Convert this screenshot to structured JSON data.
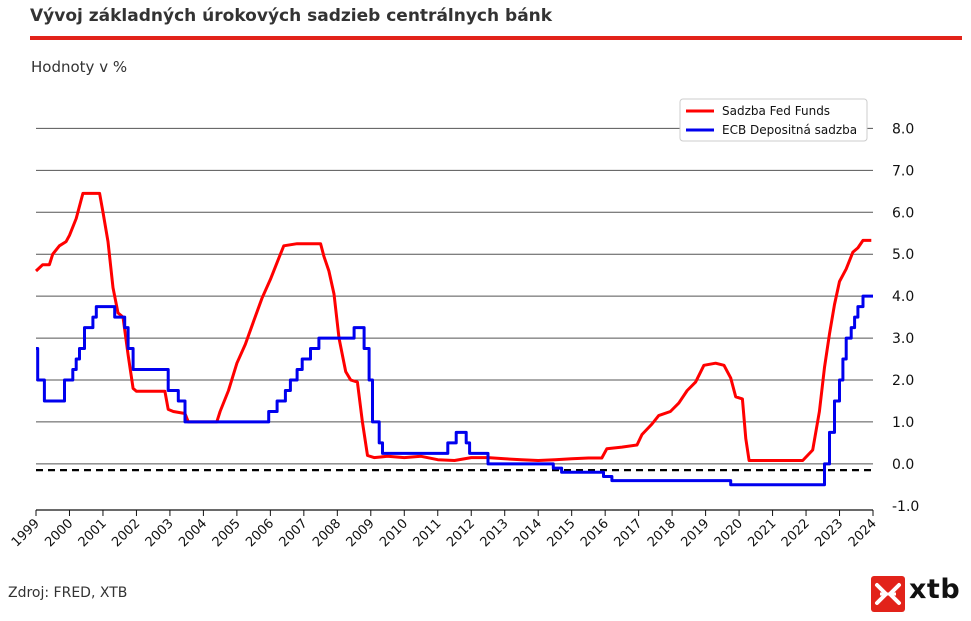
{
  "header": {
    "title": "Vývoj základných úrokových sadzieb centrálnych bánk",
    "units": "Hodnoty v %"
  },
  "footer": {
    "source": "Zdroj: FRED, XTB",
    "logo_text": "xtb",
    "logo_icon": "xtb-x-icon"
  },
  "colors": {
    "accent": "#e2231a",
    "fed": "#ff0000",
    "ecb": "#0000ee",
    "grid": "#555555"
  },
  "chart_data": {
    "type": "line",
    "title": "",
    "xlabel": "",
    "ylabel": "",
    "xlim": [
      1999,
      2024
    ],
    "ylim": [
      -1.1,
      8.2
    ],
    "x_ticks": [
      "1999",
      "2000",
      "2001",
      "2002",
      "2003",
      "2004",
      "2005",
      "2006",
      "2007",
      "2008",
      "2009",
      "2010",
      "2011",
      "2012",
      "2013",
      "2014",
      "2015",
      "2016",
      "2017",
      "2018",
      "2019",
      "2020",
      "2021",
      "2022",
      "2023",
      "2024"
    ],
    "y_ticks": [
      "8.0",
      "7.0",
      "6.0",
      "5.0",
      "4.0",
      "3.0",
      "2.0",
      "1.0",
      "0.0",
      "-1.0"
    ],
    "y_tick_values": [
      8,
      7,
      6,
      5,
      4,
      3,
      2,
      1,
      0,
      -1
    ],
    "y_axis_side": "right",
    "grid": "horizontal",
    "legend_position": "top-right",
    "reference_line": {
      "y": -0.15,
      "style": "dashed",
      "color": "#000000"
    },
    "series": [
      {
        "name": "Sadzba Fed Funds",
        "color": "#ff0000",
        "step": false,
        "points": [
          [
            1999.0,
            4.6
          ],
          [
            1999.2,
            4.75
          ],
          [
            1999.4,
            4.75
          ],
          [
            1999.5,
            5.0
          ],
          [
            1999.7,
            5.2
          ],
          [
            1999.9,
            5.3
          ],
          [
            2000.0,
            5.45
          ],
          [
            2000.2,
            5.85
          ],
          [
            2000.4,
            6.45
          ],
          [
            2000.6,
            6.45
          ],
          [
            2000.9,
            6.45
          ],
          [
            2001.0,
            6.0
          ],
          [
            2001.15,
            5.3
          ],
          [
            2001.3,
            4.2
          ],
          [
            2001.45,
            3.6
          ],
          [
            2001.6,
            3.5
          ],
          [
            2001.75,
            2.6
          ],
          [
            2001.9,
            1.8
          ],
          [
            2002.0,
            1.73
          ],
          [
            2002.5,
            1.73
          ],
          [
            2002.85,
            1.73
          ],
          [
            2002.95,
            1.3
          ],
          [
            2003.1,
            1.25
          ],
          [
            2003.45,
            1.2
          ],
          [
            2003.55,
            1.0
          ],
          [
            2004.4,
            1.0
          ],
          [
            2004.5,
            1.25
          ],
          [
            2004.75,
            1.75
          ],
          [
            2005.0,
            2.4
          ],
          [
            2005.25,
            2.85
          ],
          [
            2005.5,
            3.4
          ],
          [
            2005.75,
            3.95
          ],
          [
            2006.0,
            4.4
          ],
          [
            2006.25,
            4.9
          ],
          [
            2006.4,
            5.2
          ],
          [
            2006.8,
            5.25
          ],
          [
            2007.2,
            5.25
          ],
          [
            2007.5,
            5.25
          ],
          [
            2007.6,
            4.95
          ],
          [
            2007.75,
            4.6
          ],
          [
            2007.9,
            4.05
          ],
          [
            2008.05,
            3.0
          ],
          [
            2008.25,
            2.2
          ],
          [
            2008.4,
            2.0
          ],
          [
            2008.6,
            1.95
          ],
          [
            2008.75,
            1.0
          ],
          [
            2008.9,
            0.2
          ],
          [
            2009.1,
            0.15
          ],
          [
            2009.5,
            0.18
          ],
          [
            2010.0,
            0.15
          ],
          [
            2010.5,
            0.18
          ],
          [
            2011.0,
            0.1
          ],
          [
            2011.5,
            0.08
          ],
          [
            2012.0,
            0.15
          ],
          [
            2012.5,
            0.15
          ],
          [
            2013.0,
            0.12
          ],
          [
            2013.5,
            0.1
          ],
          [
            2014.0,
            0.08
          ],
          [
            2014.5,
            0.1
          ],
          [
            2015.0,
            0.12
          ],
          [
            2015.5,
            0.14
          ],
          [
            2015.9,
            0.14
          ],
          [
            2016.05,
            0.36
          ],
          [
            2016.5,
            0.4
          ],
          [
            2016.95,
            0.45
          ],
          [
            2017.1,
            0.7
          ],
          [
            2017.4,
            0.95
          ],
          [
            2017.6,
            1.15
          ],
          [
            2017.95,
            1.25
          ],
          [
            2018.2,
            1.45
          ],
          [
            2018.45,
            1.75
          ],
          [
            2018.7,
            1.95
          ],
          [
            2018.95,
            2.35
          ],
          [
            2019.3,
            2.4
          ],
          [
            2019.55,
            2.35
          ],
          [
            2019.75,
            2.05
          ],
          [
            2019.9,
            1.6
          ],
          [
            2020.1,
            1.55
          ],
          [
            2020.2,
            0.6
          ],
          [
            2020.3,
            0.08
          ],
          [
            2020.5,
            0.08
          ],
          [
            2021.0,
            0.08
          ],
          [
            2021.5,
            0.08
          ],
          [
            2021.9,
            0.08
          ],
          [
            2022.2,
            0.33
          ],
          [
            2022.4,
            1.25
          ],
          [
            2022.55,
            2.3
          ],
          [
            2022.7,
            3.1
          ],
          [
            2022.85,
            3.8
          ],
          [
            2023.0,
            4.35
          ],
          [
            2023.2,
            4.65
          ],
          [
            2023.4,
            5.05
          ],
          [
            2023.55,
            5.15
          ],
          [
            2023.7,
            5.33
          ],
          [
            2023.95,
            5.33
          ]
        ]
      },
      {
        "name": "ECB Depositná sadzba",
        "color": "#0000ee",
        "step": true,
        "points": [
          [
            1999.0,
            2.75
          ],
          [
            1999.05,
            2.0
          ],
          [
            1999.25,
            1.5
          ],
          [
            1999.85,
            2.0
          ],
          [
            2000.1,
            2.25
          ],
          [
            2000.2,
            2.5
          ],
          [
            2000.3,
            2.75
          ],
          [
            2000.45,
            3.25
          ],
          [
            2000.7,
            3.5
          ],
          [
            2000.8,
            3.75
          ],
          [
            2001.35,
            3.5
          ],
          [
            2001.65,
            3.25
          ],
          [
            2001.75,
            2.75
          ],
          [
            2001.9,
            2.25
          ],
          [
            2002.95,
            1.75
          ],
          [
            2003.25,
            1.5
          ],
          [
            2003.45,
            1.0
          ],
          [
            2003.85,
            1.0
          ],
          [
            2005.95,
            1.25
          ],
          [
            2006.2,
            1.5
          ],
          [
            2006.45,
            1.75
          ],
          [
            2006.6,
            2.0
          ],
          [
            2006.8,
            2.25
          ],
          [
            2006.95,
            2.5
          ],
          [
            2007.2,
            2.75
          ],
          [
            2007.45,
            3.0
          ],
          [
            2008.5,
            3.25
          ],
          [
            2008.8,
            2.75
          ],
          [
            2008.95,
            2.0
          ],
          [
            2009.05,
            1.0
          ],
          [
            2009.25,
            0.5
          ],
          [
            2009.35,
            0.25
          ],
          [
            2011.3,
            0.5
          ],
          [
            2011.55,
            0.75
          ],
          [
            2011.85,
            0.5
          ],
          [
            2011.95,
            0.25
          ],
          [
            2012.5,
            0.0
          ],
          [
            2014.45,
            -0.1
          ],
          [
            2014.7,
            -0.2
          ],
          [
            2015.95,
            -0.3
          ],
          [
            2016.2,
            -0.4
          ],
          [
            2019.75,
            -0.5
          ],
          [
            2022.55,
            0.0
          ],
          [
            2022.7,
            0.75
          ],
          [
            2022.85,
            1.5
          ],
          [
            2023.0,
            2.0
          ],
          [
            2023.1,
            2.5
          ],
          [
            2023.2,
            3.0
          ],
          [
            2023.35,
            3.25
          ],
          [
            2023.45,
            3.5
          ],
          [
            2023.55,
            3.75
          ],
          [
            2023.7,
            4.0
          ],
          [
            2024.0,
            4.0
          ]
        ]
      }
    ]
  }
}
